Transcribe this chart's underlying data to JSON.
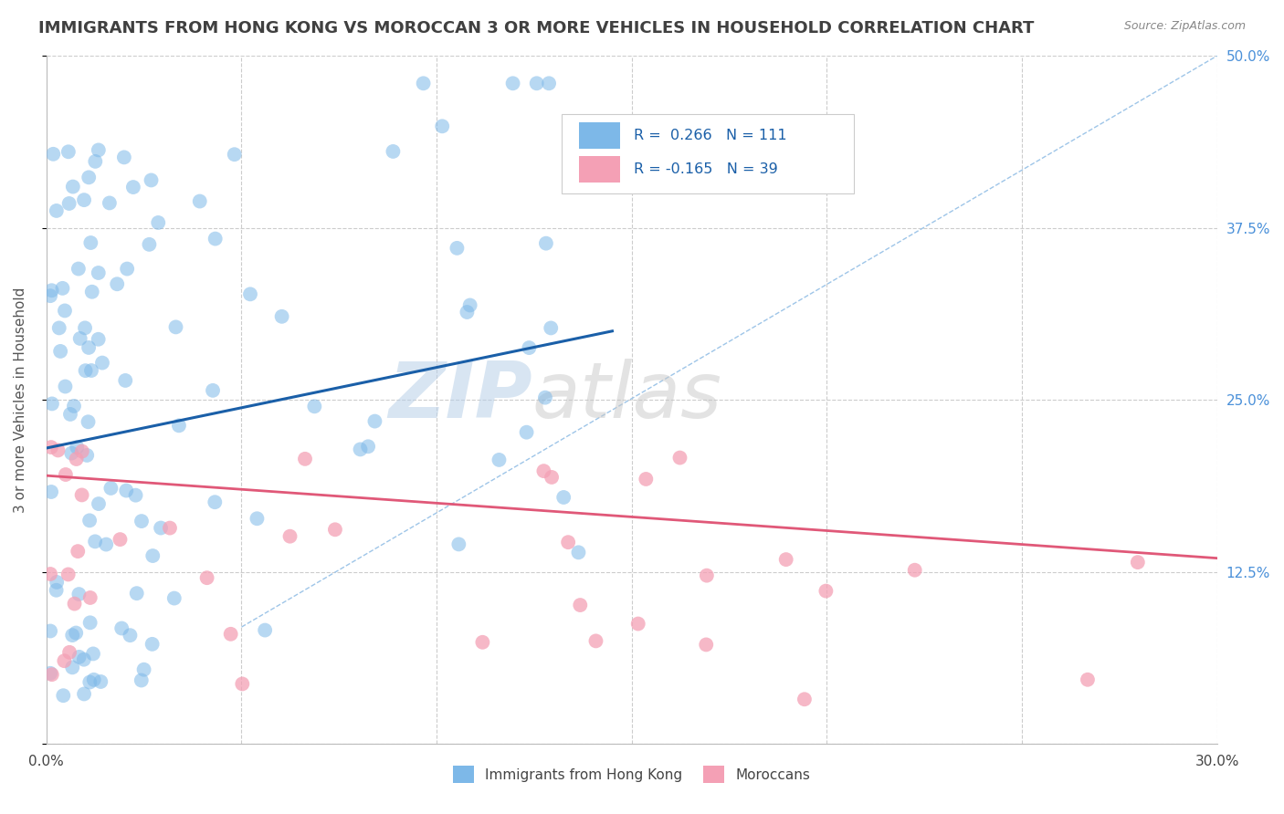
{
  "title": "IMMIGRANTS FROM HONG KONG VS MOROCCAN 3 OR MORE VEHICLES IN HOUSEHOLD CORRELATION CHART",
  "source_text": "Source: ZipAtlas.com",
  "ylabel": "3 or more Vehicles in Household",
  "xlim": [
    0.0,
    0.3
  ],
  "ylim": [
    0.0,
    0.5
  ],
  "xticks": [
    0.0,
    0.05,
    0.1,
    0.15,
    0.2,
    0.25,
    0.3
  ],
  "xticklabels": [
    "0.0%",
    "",
    "",
    "",
    "",
    "",
    "30.0%"
  ],
  "ytick_positions": [
    0.0,
    0.125,
    0.25,
    0.375,
    0.5
  ],
  "yticklabels_right": [
    "",
    "12.5%",
    "25.0%",
    "37.5%",
    "50.0%"
  ],
  "blue_color": "#7db8e8",
  "pink_color": "#f4a0b5",
  "blue_line_color": "#1a5fa8",
  "pink_line_color": "#e05878",
  "diag_line_color": "#9ec5e8",
  "R_blue": 0.266,
  "N_blue": 111,
  "R_pink": -0.165,
  "N_pink": 39,
  "watermark_zip": "ZIP",
  "watermark_atlas": "atlas",
  "background_color": "#ffffff",
  "title_color": "#404040",
  "title_fontsize": 13,
  "axis_label_color": "#555555",
  "right_tick_color": "#4a90d9",
  "grid_color": "#cccccc",
  "legend_box_color": "#e8e8e8",
  "legend_text_color": "#1a5fa8",
  "legend_label_color": "#333333",
  "source_color": "#888888"
}
